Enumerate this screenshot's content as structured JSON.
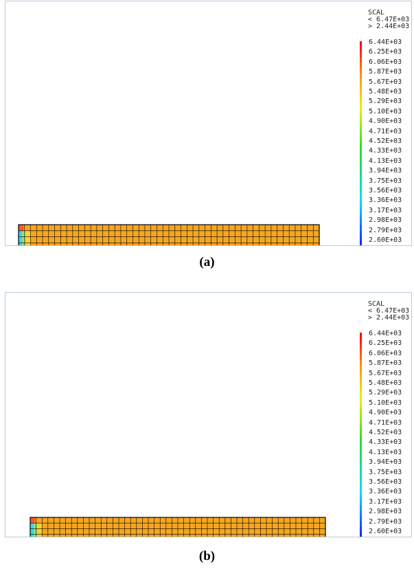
{
  "panels": [
    {
      "id": "a",
      "caption": "(a)",
      "legend": {
        "title": "SCAL",
        "max_line": "< 6.47E+03",
        "min_line": "> 2.44E+03",
        "levels": [
          "6.44E+03",
          "6.25E+03",
          "6.06E+03",
          "5.87E+03",
          "5.67E+03",
          "5.48E+03",
          "5.29E+03",
          "5.10E+03",
          "4.90E+03",
          "4.71E+03",
          "4.52E+03",
          "4.33E+03",
          "4.13E+03",
          "3.94E+03",
          "3.75E+03",
          "3.56E+03",
          "3.36E+03",
          "3.17E+03",
          "2.98E+03",
          "2.79E+03",
          "2.60E+03"
        ]
      }
    },
    {
      "id": "b",
      "caption": "(b)",
      "legend": {
        "title": "SCAL",
        "max_line": "< 6.47E+03",
        "min_line": "> 2.44E+03",
        "levels": [
          "6.44E+03",
          "6.25E+03",
          "6.06E+03",
          "5.87E+03",
          "5.67E+03",
          "5.48E+03",
          "5.29E+03",
          "5.10E+03",
          "4.90E+03",
          "4.71E+03",
          "4.52E+03",
          "4.33E+03",
          "4.13E+03",
          "3.94E+03",
          "3.75E+03",
          "3.56E+03",
          "3.36E+03",
          "3.17E+03",
          "2.98E+03",
          "2.79E+03",
          "2.60E+03"
        ]
      }
    }
  ],
  "colors": {
    "mesh_fill": "#f5a623",
    "mesh_line": "#000000",
    "low": "#1e2bff",
    "cyan": "#38d6e8",
    "high": "#ff1a1a",
    "panel_border": "#b7c9dc"
  }
}
